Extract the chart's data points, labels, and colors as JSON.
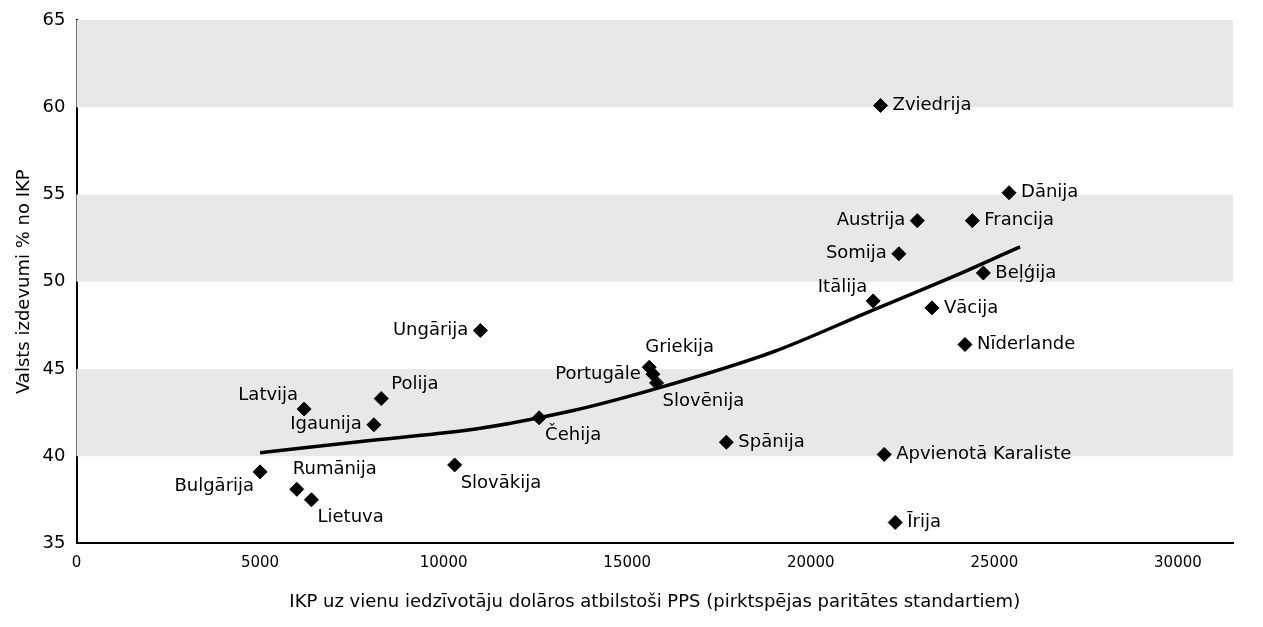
{
  "chart_data": {
    "type": "scatter",
    "xlabel": "IKP uz vienu iedzīvotāju dolāros atbilstoši PPS (pirktspējas paritātes standartiem)",
    "ylabel": "Valsts izdevumi % no IKP",
    "xlim": [
      0,
      31500
    ],
    "xticks": [
      0,
      5000,
      10000,
      15000,
      20000,
      25000,
      30000
    ],
    "ylim": [
      35,
      65
    ],
    "yticks": [
      35,
      40,
      45,
      50,
      55,
      60,
      65
    ],
    "grid": false,
    "legend": false,
    "marker": "diamond",
    "bands": [
      {
        "axis": "y",
        "from": 40,
        "to": 45,
        "color": "#e8e8e8"
      },
      {
        "axis": "y",
        "from": 50,
        "to": 55,
        "color": "#e8e8e8"
      },
      {
        "axis": "y",
        "from": 60,
        "to": 65,
        "color": "#e8e8e8"
      }
    ],
    "series": [
      {
        "color": "#000000",
        "x": [
          21900,
          25400,
          22900,
          24400,
          22400,
          24700,
          21700,
          23300,
          24200,
          11000,
          15600,
          15700,
          15800,
          8300,
          6200,
          8100,
          12600,
          17700,
          22000,
          10300,
          5000,
          6000,
          6400,
          22300
        ],
        "values": [
          60.1,
          55.1,
          53.5,
          53.5,
          51.6,
          50.5,
          48.9,
          48.5,
          46.4,
          47.2,
          45.1,
          44.7,
          44.2,
          43.3,
          42.7,
          41.8,
          42.2,
          40.8,
          40.1,
          39.5,
          39.1,
          38.1,
          37.5,
          36.2
        ]
      },
      {
        "type": "line",
        "color": "#000000",
        "marker": "none",
        "x": [
          5000,
          8000,
          11000,
          13500,
          16000,
          19000,
          21500,
          24000,
          25700
        ],
        "values": [
          40.2,
          40.9,
          41.6,
          42.6,
          44.0,
          46.0,
          48.2,
          50.4,
          52.0
        ]
      }
    ],
    "annotations": [
      {
        "text": "Zviedrija",
        "x": 21900,
        "y": 60.1
      },
      {
        "text": "Dānija",
        "x": 25400,
        "y": 55.1
      },
      {
        "text": "Austrija",
        "x": 22900,
        "y": 53.5
      },
      {
        "text": "Francija",
        "x": 24400,
        "y": 53.5
      },
      {
        "text": "Somija",
        "x": 22400,
        "y": 51.6
      },
      {
        "text": "Beļģija",
        "x": 24700,
        "y": 50.5
      },
      {
        "text": "Itālija",
        "x": 21700,
        "y": 48.9
      },
      {
        "text": "Vācija",
        "x": 23300,
        "y": 48.5
      },
      {
        "text": "Nīderlande",
        "x": 24200,
        "y": 46.4
      },
      {
        "text": "Ungārija",
        "x": 11000,
        "y": 47.2
      },
      {
        "text": "Griekija",
        "x": 15600,
        "y": 45.1
      },
      {
        "text": "Portugāle",
        "x": 15700,
        "y": 44.7
      },
      {
        "text": "Slovēnija",
        "x": 15800,
        "y": 44.2
      },
      {
        "text": "Polija",
        "x": 8300,
        "y": 43.3
      },
      {
        "text": "Latvija",
        "x": 6200,
        "y": 42.7
      },
      {
        "text": "Igaunija",
        "x": 8100,
        "y": 41.8
      },
      {
        "text": "Čehija",
        "x": 12600,
        "y": 42.2
      },
      {
        "text": "Spānija",
        "x": 17700,
        "y": 40.8
      },
      {
        "text": "Apvienotā Karaliste",
        "x": 22000,
        "y": 40.1
      },
      {
        "text": "Slovākija",
        "x": 10300,
        "y": 39.5
      },
      {
        "text": "Bulgārija",
        "x": 5000,
        "y": 39.1
      },
      {
        "text": "Rumānija",
        "x": 6000,
        "y": 38.1
      },
      {
        "text": "Lietuva",
        "x": 6400,
        "y": 37.5
      },
      {
        "text": "Īrija",
        "x": 22300,
        "y": 36.2
      }
    ]
  }
}
